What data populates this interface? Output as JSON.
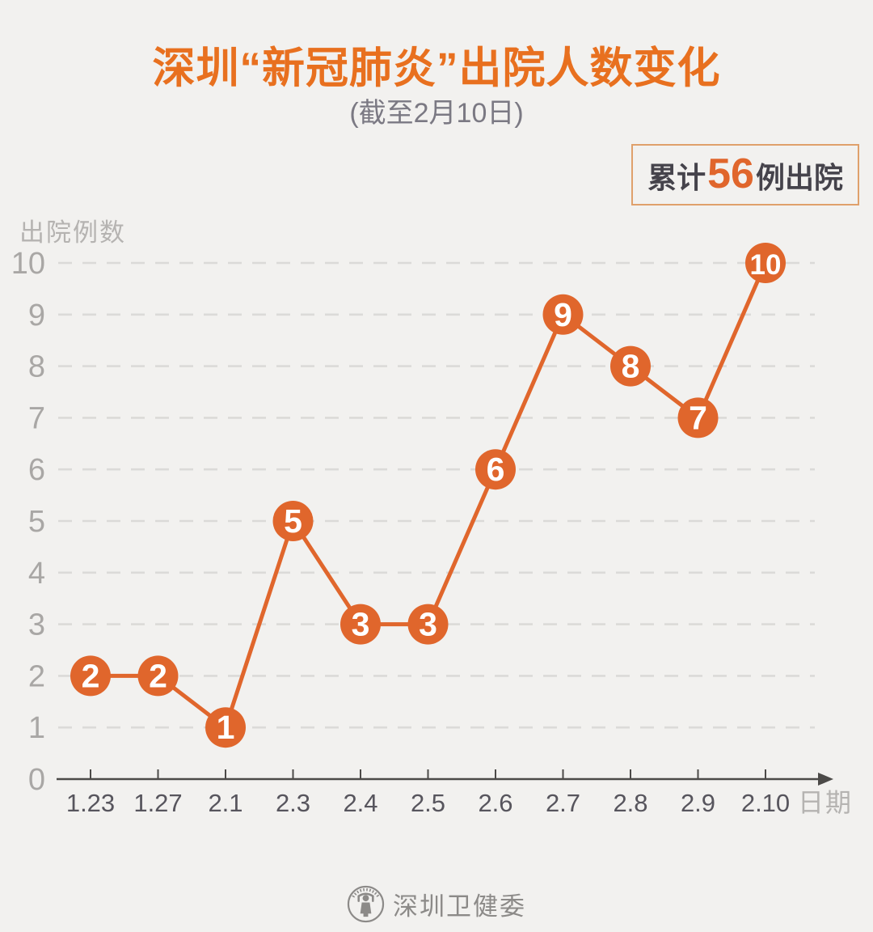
{
  "header": {
    "title": "深圳“新冠肺炎”出院人数变化",
    "subtitle": "(截至2月10日)",
    "badge": {
      "prefix": "累计",
      "count": "56",
      "suffix": "例出院"
    }
  },
  "chart_data": {
    "type": "line",
    "title": "深圳“新冠肺炎”出院人数变化",
    "subtitle": "(截至2月10日)",
    "categories": [
      "1.23",
      "1.27",
      "2.1",
      "2.3",
      "2.4",
      "2.5",
      "2.6",
      "2.7",
      "2.8",
      "2.9",
      "2.10"
    ],
    "values": [
      2,
      2,
      1,
      5,
      3,
      3,
      6,
      9,
      8,
      7,
      10
    ],
    "xlabel": "日期",
    "ylabel": "出院例数",
    "ylim": [
      0,
      10
    ],
    "yticks": [
      0,
      1,
      2,
      3,
      4,
      5,
      6,
      7,
      8,
      9,
      10
    ],
    "grid": "horizontal-dashed",
    "legend": "none",
    "annotation_cumulative_total": 56,
    "colors": {
      "accent": "#e0662c",
      "point_label": "#ffffff",
      "gridline": "#dbdad8",
      "axis": "#4c4a48",
      "x_tick_label": "#57555d",
      "y_tick_label": "#a9a7a5",
      "axis_title": "#b5b3b1",
      "background": "#f2f1ef"
    }
  },
  "footer": {
    "source": "深圳卫健委",
    "logo": "shenzhen-health-commission-seal"
  }
}
